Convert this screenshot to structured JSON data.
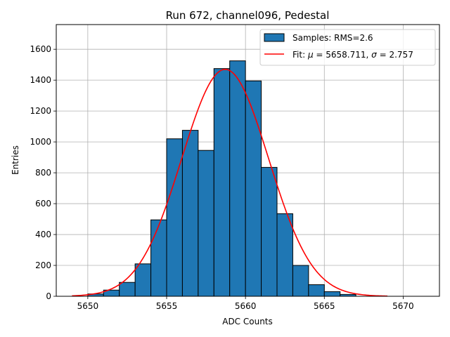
{
  "chart_data": {
    "type": "bar",
    "title": "Run 672, channel096, Pedestal",
    "xlabel": "ADC Counts",
    "ylabel": "Entries",
    "xlim": [
      5648.0,
      5672.3
    ],
    "ylim": [
      0,
      1760
    ],
    "grid": true,
    "legend_position": "top-right",
    "xticks": [
      5650,
      5655,
      5660,
      5665,
      5670
    ],
    "yticks": [
      0,
      200,
      400,
      600,
      800,
      1000,
      1200,
      1400,
      1600
    ],
    "bin_width": 1,
    "histogram": {
      "name": "Samples: RMS=2.6",
      "color": "#1f77b4",
      "edge_color": "#000000",
      "bin_starts": [
        5650,
        5651,
        5652,
        5653,
        5654,
        5655,
        5656,
        5657,
        5658,
        5659,
        5660,
        5661,
        5662,
        5663,
        5664,
        5665,
        5666
      ],
      "values": [
        15,
        40,
        90,
        210,
        495,
        1020,
        1075,
        945,
        1475,
        1525,
        1395,
        835,
        535,
        200,
        75,
        30,
        12
      ]
    },
    "fit": {
      "name_prefix": "Fit: ",
      "mu_symbol": "μ",
      "sigma_symbol": "σ",
      "mu": "5658.711",
      "sigma": "2.757",
      "amplitude": 1470,
      "x_range": [
        5649,
        5669
      ],
      "color": "#ff0000"
    }
  }
}
